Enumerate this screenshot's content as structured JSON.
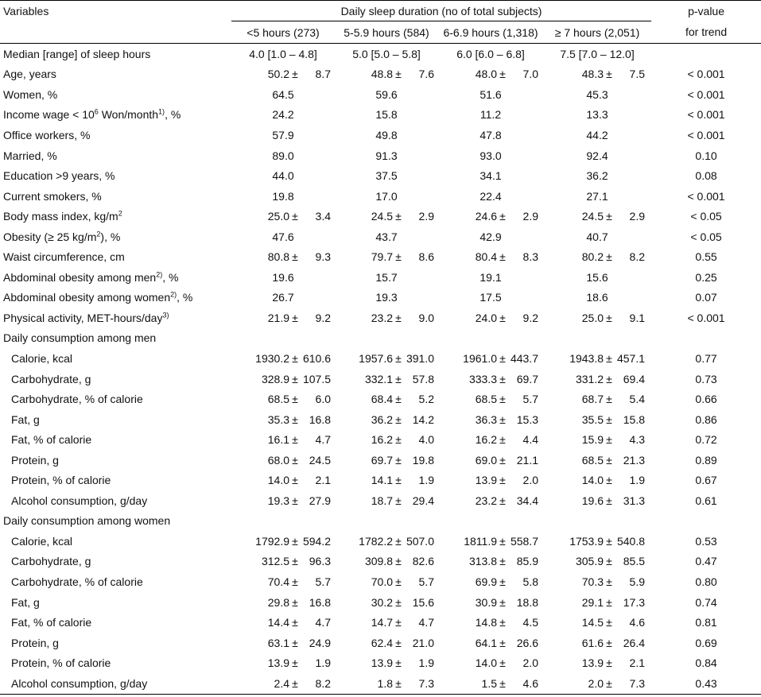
{
  "header": {
    "variables": "Variables",
    "group_title": "Daily sleep duration (no of total subjects)",
    "pvalue_line1": "p-value",
    "pvalue_line2": "for trend",
    "cols": [
      "<5 hours (273)",
      "5-5.9 hours (584)",
      "6-6.9 hours (1,318)",
      "≥ 7 hours (2,051)"
    ]
  },
  "rows": [
    {
      "label": "Median [range] of sleep hours",
      "type": "text",
      "cells": [
        "4.0 [1.0 – 4.8]",
        "5.0 [5.0 – 5.8]",
        "6.0 [6.0 – 6.8]",
        "7.5 [7.0 – 12.0]"
      ],
      "p": ""
    },
    {
      "label": "Age, years",
      "type": "msd",
      "cells": [
        [
          "50.2",
          "8.7"
        ],
        [
          "48.8",
          "7.6"
        ],
        [
          "48.0",
          "7.0"
        ],
        [
          "48.3",
          "7.5"
        ]
      ],
      "p": "< 0.001"
    },
    {
      "label": "Women, %",
      "type": "text",
      "cells": [
        "64.5",
        "59.6",
        "51.6",
        "45.3"
      ],
      "p": "< 0.001"
    },
    {
      "label": "Income wage < 10",
      "sup1": "6",
      "label_mid": " Won/month",
      "sup2": "1)",
      "label_tail": ", %",
      "type": "text",
      "cells": [
        "24.2",
        "15.8",
        "11.2",
        "13.3"
      ],
      "p": "< 0.001"
    },
    {
      "label": "Office workers, %",
      "type": "text",
      "cells": [
        "57.9",
        "49.8",
        "47.8",
        "44.2"
      ],
      "p": "< 0.001"
    },
    {
      "label": "Married, %",
      "type": "text",
      "cells": [
        "89.0",
        "91.3",
        "93.0",
        "92.4"
      ],
      "p": "0.10"
    },
    {
      "label": "Education >9 years, %",
      "type": "text",
      "cells": [
        "44.0",
        "37.5",
        "34.1",
        "36.2"
      ],
      "p": "0.08"
    },
    {
      "label": "Current smokers, %",
      "type": "text",
      "cells": [
        "19.8",
        "17.0",
        "22.4",
        "27.1"
      ],
      "p": "< 0.001"
    },
    {
      "label": "Body mass index, kg/m",
      "sup1": "2",
      "type": "msd",
      "cells": [
        [
          "25.0",
          "3.4"
        ],
        [
          "24.5",
          "2.9"
        ],
        [
          "24.6",
          "2.9"
        ],
        [
          "24.5",
          "2.9"
        ]
      ],
      "p": "< 0.05"
    },
    {
      "label": "Obesity (≥ 25 kg/m",
      "sup1": "2",
      "label_mid": "), %",
      "type": "text",
      "cells": [
        "47.6",
        "43.7",
        "42.9",
        "40.7"
      ],
      "p": "< 0.05"
    },
    {
      "label": "Waist circumference, cm",
      "type": "msd",
      "cells": [
        [
          "80.8",
          "9.3"
        ],
        [
          "79.7",
          "8.6"
        ],
        [
          "80.4",
          "8.3"
        ],
        [
          "80.2",
          "8.2"
        ]
      ],
      "p": "0.55"
    },
    {
      "label": "Abdominal obesity among men",
      "sup1": "2)",
      "label_mid": ", %",
      "type": "text",
      "cells": [
        "19.6",
        "15.7",
        "19.1",
        "15.6"
      ],
      "p": "0.25"
    },
    {
      "label": "Abdominal obesity among women",
      "sup1": "2)",
      "label_mid": ", %",
      "type": "text",
      "cells": [
        "26.7",
        "19.3",
        "17.5",
        "18.6"
      ],
      "p": "0.07"
    },
    {
      "label": "Physical activity, MET-hours/day",
      "sup1": "3)",
      "type": "msd",
      "cells": [
        [
          "21.9",
          "9.2"
        ],
        [
          "23.2",
          "9.0"
        ],
        [
          "24.0",
          "9.2"
        ],
        [
          "25.0",
          "9.1"
        ]
      ],
      "p": "< 0.001"
    },
    {
      "label": "Daily consumption among men",
      "type": "section"
    },
    {
      "label": "Calorie, kcal",
      "indent": true,
      "type": "msd",
      "cells": [
        [
          "1930.2",
          "610.6"
        ],
        [
          "1957.6",
          "391.0"
        ],
        [
          "1961.0",
          "443.7"
        ],
        [
          "1943.8",
          "457.1"
        ]
      ],
      "p": "0.77"
    },
    {
      "label": "Carbohydrate, g",
      "indent": true,
      "type": "msd",
      "cells": [
        [
          "328.9",
          "107.5"
        ],
        [
          "332.1",
          "57.8"
        ],
        [
          "333.3",
          "69.7"
        ],
        [
          "331.2",
          "69.4"
        ]
      ],
      "p": "0.73"
    },
    {
      "label": "Carbohydrate, % of calorie",
      "indent": true,
      "type": "msd",
      "cells": [
        [
          "68.5",
          "6.0"
        ],
        [
          "68.4",
          "5.2"
        ],
        [
          "68.5",
          "5.7"
        ],
        [
          "68.7",
          "5.4"
        ]
      ],
      "p": "0.66"
    },
    {
      "label": "Fat, g",
      "indent": true,
      "type": "msd",
      "cells": [
        [
          "35.3",
          "16.8"
        ],
        [
          "36.2",
          "14.2"
        ],
        [
          "36.3",
          "15.3"
        ],
        [
          "35.5",
          "15.8"
        ]
      ],
      "p": "0.86"
    },
    {
      "label": "Fat, % of calorie",
      "indent": true,
      "type": "msd",
      "cells": [
        [
          "16.1",
          "4.7"
        ],
        [
          "16.2",
          "4.0"
        ],
        [
          "16.2",
          "4.4"
        ],
        [
          "15.9",
          "4.3"
        ]
      ],
      "p": "0.72"
    },
    {
      "label": "Protein, g",
      "indent": true,
      "type": "msd",
      "cells": [
        [
          "68.0",
          "24.5"
        ],
        [
          "69.7",
          "19.8"
        ],
        [
          "69.0",
          "21.1"
        ],
        [
          "68.5",
          "21.3"
        ]
      ],
      "p": "0.89"
    },
    {
      "label": "Protein, % of calorie",
      "indent": true,
      "type": "msd",
      "cells": [
        [
          "14.0",
          "2.1"
        ],
        [
          "14.1",
          "1.9"
        ],
        [
          "13.9",
          "2.0"
        ],
        [
          "14.0",
          "1.9"
        ]
      ],
      "p": "0.67"
    },
    {
      "label": "Alcohol consumption, g/day",
      "indent": true,
      "type": "msd",
      "cells": [
        [
          "19.3",
          "27.9"
        ],
        [
          "18.7",
          "29.4"
        ],
        [
          "23.2",
          "34.4"
        ],
        [
          "19.6",
          "31.3"
        ]
      ],
      "p": "0.61"
    },
    {
      "label": "Daily consumption among women",
      "type": "section"
    },
    {
      "label": "Calorie, kcal",
      "indent": true,
      "type": "msd",
      "cells": [
        [
          "1792.9",
          "594.2"
        ],
        [
          "1782.2",
          "507.0"
        ],
        [
          "1811.9",
          "558.7"
        ],
        [
          "1753.9",
          "540.8"
        ]
      ],
      "p": "0.53"
    },
    {
      "label": "Carbohydrate, g",
      "indent": true,
      "type": "msd",
      "cells": [
        [
          "312.5",
          "96.3"
        ],
        [
          "309.8",
          "82.6"
        ],
        [
          "313.8",
          "85.9"
        ],
        [
          "305.9",
          "85.5"
        ]
      ],
      "p": "0.47"
    },
    {
      "label": "Carbohydrate, % of calorie",
      "indent": true,
      "type": "msd",
      "cells": [
        [
          "70.4",
          "5.7"
        ],
        [
          "70.0",
          "5.7"
        ],
        [
          "69.9",
          "5.8"
        ],
        [
          "70.3",
          "5.9"
        ]
      ],
      "p": "0.80"
    },
    {
      "label": "Fat, g",
      "indent": true,
      "type": "msd",
      "cells": [
        [
          "29.8",
          "16.8"
        ],
        [
          "30.2",
          "15.6"
        ],
        [
          "30.9",
          "18.8"
        ],
        [
          "29.1",
          "17.3"
        ]
      ],
      "p": "0.74"
    },
    {
      "label": "Fat, % of calorie",
      "indent": true,
      "type": "msd",
      "cells": [
        [
          "14.4",
          "4.7"
        ],
        [
          "14.7",
          "4.7"
        ],
        [
          "14.8",
          "4.5"
        ],
        [
          "14.5",
          "4.6"
        ]
      ],
      "p": "0.81"
    },
    {
      "label": "Protein, g",
      "indent": true,
      "type": "msd",
      "cells": [
        [
          "63.1",
          "24.9"
        ],
        [
          "62.4",
          "21.0"
        ],
        [
          "64.1",
          "26.6"
        ],
        [
          "61.6",
          "26.4"
        ]
      ],
      "p": "0.69"
    },
    {
      "label": "Protein, % of calorie",
      "indent": true,
      "type": "msd",
      "cells": [
        [
          "13.9",
          "1.9"
        ],
        [
          "13.9",
          "1.9"
        ],
        [
          "14.0",
          "2.0"
        ],
        [
          "13.9",
          "2.1"
        ]
      ],
      "p": "0.84"
    },
    {
      "label": "Alcohol consumption, g/day",
      "indent": true,
      "type": "msd",
      "cells": [
        [
          "2.4",
          "8.2"
        ],
        [
          "1.8",
          "7.3"
        ],
        [
          "1.5",
          "4.6"
        ],
        [
          "2.0",
          "7.3"
        ]
      ],
      "p": "0.43"
    }
  ],
  "symbols": {
    "pm": "±"
  }
}
